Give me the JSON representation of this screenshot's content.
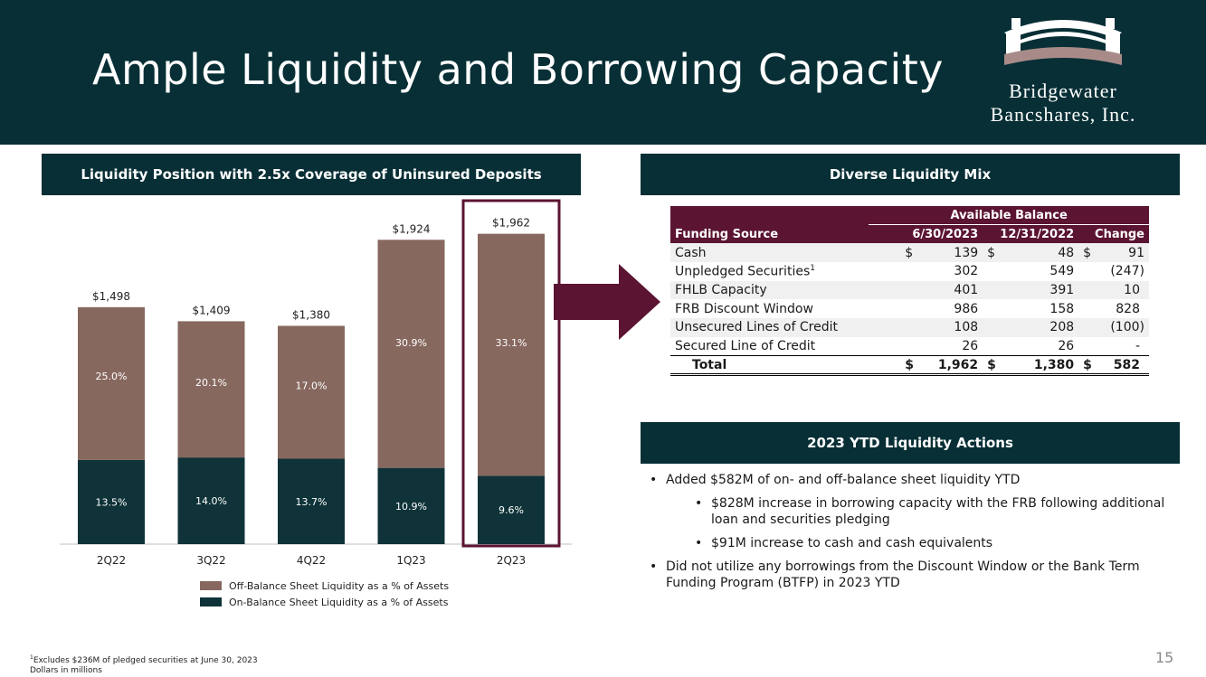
{
  "header": {
    "title": "Ample Liquidity and Borrowing Capacity",
    "logo_line1": "Bridgewater",
    "logo_line2": "Bancshares, Inc."
  },
  "sections": {
    "chart_title": "Liquidity Position with 2.5x Coverage of Uninsured Deposits",
    "mix_title": "Diverse Liquidity Mix",
    "actions_title": "2023 YTD Liquidity Actions"
  },
  "colors": {
    "navy": "#072f35",
    "maroon": "#5b1432",
    "brown": "#87685f",
    "dark": "#0f3338",
    "accent": "#6b1e3a"
  },
  "chart_data": {
    "type": "bar",
    "stacked": true,
    "categories": [
      "2Q22",
      "3Q22",
      "4Q22",
      "1Q23",
      "2Q23"
    ],
    "totals": [
      "$1,498",
      "$1,409",
      "$1,380",
      "$1,924",
      "$1,962"
    ],
    "total_values": [
      1498,
      1409,
      1380,
      1924,
      1962
    ],
    "series": [
      {
        "name": "On-Balance Sheet Liquidity as a % of Assets",
        "labels": [
          "13.5%",
          "14.0%",
          "13.7%",
          "10.9%",
          "9.6%"
        ],
        "values": [
          532,
          548,
          540,
          482,
          432
        ],
        "color": "#0f3338"
      },
      {
        "name": "Off-Balance Sheet Liquidity as a % of Assets",
        "labels": [
          "25.0%",
          "20.1%",
          "17.0%",
          "30.9%",
          "33.1%"
        ],
        "values": [
          966,
          861,
          840,
          1442,
          1530
        ],
        "color": "#87685f"
      }
    ],
    "highlight": "2Q23",
    "ylim": [
      0,
      2000
    ]
  },
  "legend": {
    "off": "Off-Balance Sheet Liquidity as a % of Assets",
    "on": "On-Balance Sheet Liquidity as a % of Assets"
  },
  "table": {
    "group_header": "Available Balance",
    "headers": [
      "Funding Source",
      "6/30/2023",
      "12/31/2022",
      "Change"
    ],
    "rows": [
      {
        "source": "Cash",
        "sym": "$",
        "a": "139",
        "sym2": "$",
        "b": "48",
        "sym3": "$",
        "c": "91"
      },
      {
        "source": "Unpledged Securities",
        "sup": "1",
        "a": "302",
        "b": "549",
        "c": "(247)"
      },
      {
        "source": "FHLB Capacity",
        "a": "401",
        "b": "391",
        "c": "10"
      },
      {
        "source": "FRB Discount Window",
        "a": "986",
        "b": "158",
        "c": "828"
      },
      {
        "source": "Unsecured Lines of Credit",
        "a": "108",
        "b": "208",
        "c": "(100)"
      },
      {
        "source": "Secured Line of Credit",
        "a": "26",
        "b": "26",
        "c": "-"
      }
    ],
    "total": {
      "label": "Total",
      "sym": "$",
      "a": "1,962",
      "b": "1,380",
      "c": "582"
    }
  },
  "actions": {
    "b1": "Added $582M of on- and off-balance sheet liquidity YTD",
    "b1a": "$828M increase in borrowing capacity with the FRB following additional loan and securities pledging",
    "b1b": "$91M increase to cash and cash equivalents",
    "b2": "Did not utilize any borrowings from the Discount Window or the Bank Term Funding Program (BTFP) in 2023 YTD"
  },
  "footnote": {
    "line1": "Excludes $236M of pledged securities at June 30, 2023",
    "sup": "1",
    "line2": "Dollars in millions"
  },
  "page_number": "15"
}
